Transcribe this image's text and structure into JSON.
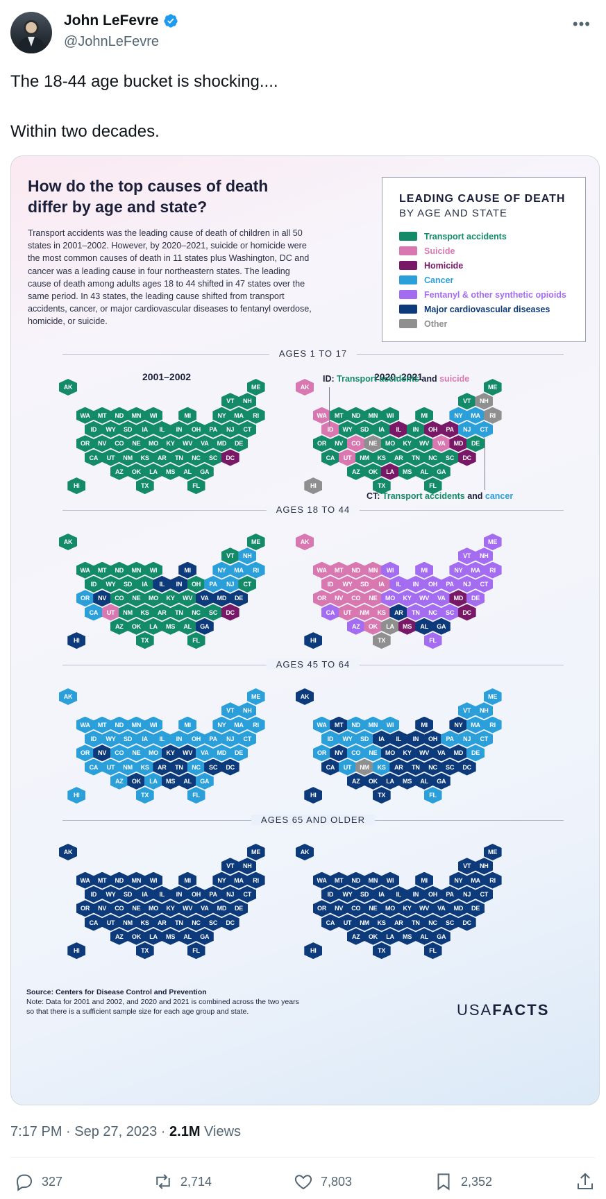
{
  "tweet": {
    "author_name": "John LeFevre",
    "author_handle": "@JohnLeFevre",
    "more_label": "•••",
    "text": "The 18-44 age bucket is shocking....\n\nWithin two decades.",
    "time": "7:17 PM · Sep 27, 2023 · ",
    "views_count": "2.1M",
    "views_label": " Views",
    "replies": "327",
    "reposts": "2,714",
    "likes": "7,803",
    "bookmarks": "2,352"
  },
  "infographic": {
    "title": "How do the top causes of death differ by age and state?",
    "description": "Transport accidents was the leading cause of death  of children in all 50 states in 2001–2002. However, by 2020–2021, suicide or homicide were the most common causes of death in 11 states plus Washington, DC and cancer was a leading cause in four northeastern states. The leading cause of death among adults ages 18 to 44 shifted in 47 states over the same period. In 43 states, the leading cause shifted from transport accidents, cancer, or major cardiovascular diseases to fentanyl overdose, homicide, or suicide.",
    "legend_title": "LEADING CAUSE OF DEATH",
    "legend_subtitle": "BY AGE AND STATE",
    "legend": [
      {
        "label": "Transport accidents",
        "color": "#138a68"
      },
      {
        "label": "Suicide",
        "color": "#d977b1"
      },
      {
        "label": "Homicide",
        "color": "#7a1868"
      },
      {
        "label": "Cancer",
        "color": "#2b9fda"
      },
      {
        "label": "Fentanyl & other synthetic opioids",
        "color": "#a46cf0"
      },
      {
        "label": "Major cardiovascular diseases",
        "color": "#0d3a7a"
      },
      {
        "label": "Other",
        "color": "#8f8f8f"
      }
    ],
    "period_left": "2001–2002",
    "period_right": "2020–2021",
    "age_groups": [
      "AGES 1 TO 17",
      "AGES 18 TO 44",
      "AGES 45 TO 64",
      "AGES 65 AND OLDER"
    ],
    "annotation_id": {
      "prefix": "ID: ",
      "a": "Transport accidents",
      "mid": " and ",
      "b": "suicide"
    },
    "annotation_ct": {
      "prefix": "CT: ",
      "a": "Transport accidents",
      "mid": " and ",
      "b": "cancer"
    },
    "source_label": "Source: Centers for Disease Control and Prevention",
    "note": "Note: Data for 2001 and 2002, and 2020 and 2021 is combined across the two years so that there is a sufficient sample size for each age group and state.",
    "brand_a": "USA",
    "brand_b": "FACTS",
    "maps": [
      {
        "group": 0,
        "side": 0,
        "default": "T",
        "overrides": {
          "DC": "H"
        }
      },
      {
        "group": 0,
        "side": 1,
        "default": "T",
        "overrides": {
          "AK": "S",
          "HI": "O",
          "ID": "S",
          "WA": "S",
          "CO": "S",
          "UT": "S",
          "VA": "S",
          "NE": "O",
          "IL": "H",
          "OH": "H",
          "PA": "H",
          "MD": "H",
          "LA": "H",
          "DC": "H",
          "NY": "C",
          "MA": "C",
          "NJ": "C",
          "CT": "C",
          "NH": "O",
          "RI": "O"
        }
      },
      {
        "group": 1,
        "side": 0,
        "default": "T",
        "overrides": {
          "HI": "V",
          "OR": "C",
          "CA": "C",
          "NV": "V",
          "UT": "S",
          "IL": "V",
          "IN": "V",
          "PA": "C",
          "NJ": "C",
          "NY": "C",
          "MA": "C",
          "RI": "C",
          "NH": "C",
          "MI": "V",
          "VA": "V",
          "MD": "V",
          "DE": "V",
          "DC": "H",
          "GA": "V",
          "ME": "T"
        }
      },
      {
        "group": 1,
        "side": 1,
        "default": "F",
        "overrides": {
          "AK": "S",
          "WA": "S",
          "MT": "S",
          "ID": "S",
          "WY": "S",
          "SD": "S",
          "ND": "S",
          "MN": "S",
          "OR": "S",
          "NV": "S",
          "CO": "S",
          "NE": "S",
          "IA": "S",
          "UT": "S",
          "NM": "S",
          "KS": "S",
          "OK": "S",
          "AZ": "F",
          "LA": "O",
          "TX": "O",
          "MS": "H",
          "AL": "V",
          "GA": "V",
          "AR": "V",
          "HI": "V",
          "MD": "H",
          "DC": "H"
        }
      },
      {
        "group": 2,
        "side": 0,
        "default": "C",
        "overrides": {
          "NV": "V",
          "OK": "V",
          "AR": "V",
          "TN": "V",
          "MS": "V",
          "KY": "V",
          "WV": "V",
          "SC": "V",
          "DC": "V",
          "AL": "V"
        }
      },
      {
        "group": 2,
        "side": 1,
        "default": "V",
        "overrides": {
          "AK": "V",
          "WA": "C",
          "ND": "C",
          "MN": "C",
          "WI": "C",
          "ID": "C",
          "WY": "C",
          "SD": "C",
          "OR": "C",
          "CO": "C",
          "NE": "C",
          "KS": "C",
          "UT": "C",
          "NM": "O",
          "PA": "C",
          "NJ": "C",
          "CT": "C",
          "MA": "C",
          "RI": "C",
          "VT": "C",
          "NH": "C",
          "ME": "C",
          "DE": "C",
          "FL": "C",
          "MT": "V",
          "NY": "V"
        }
      },
      {
        "group": 3,
        "side": 0,
        "default": "V",
        "overrides": {}
      },
      {
        "group": 3,
        "side": 1,
        "default": "V",
        "overrides": {}
      }
    ],
    "code_colors": {
      "T": "#138a68",
      "S": "#d977b1",
      "H": "#7a1868",
      "C": "#2b9fda",
      "F": "#a46cf0",
      "V": "#0d3a7a",
      "O": "#8f8f8f"
    }
  }
}
